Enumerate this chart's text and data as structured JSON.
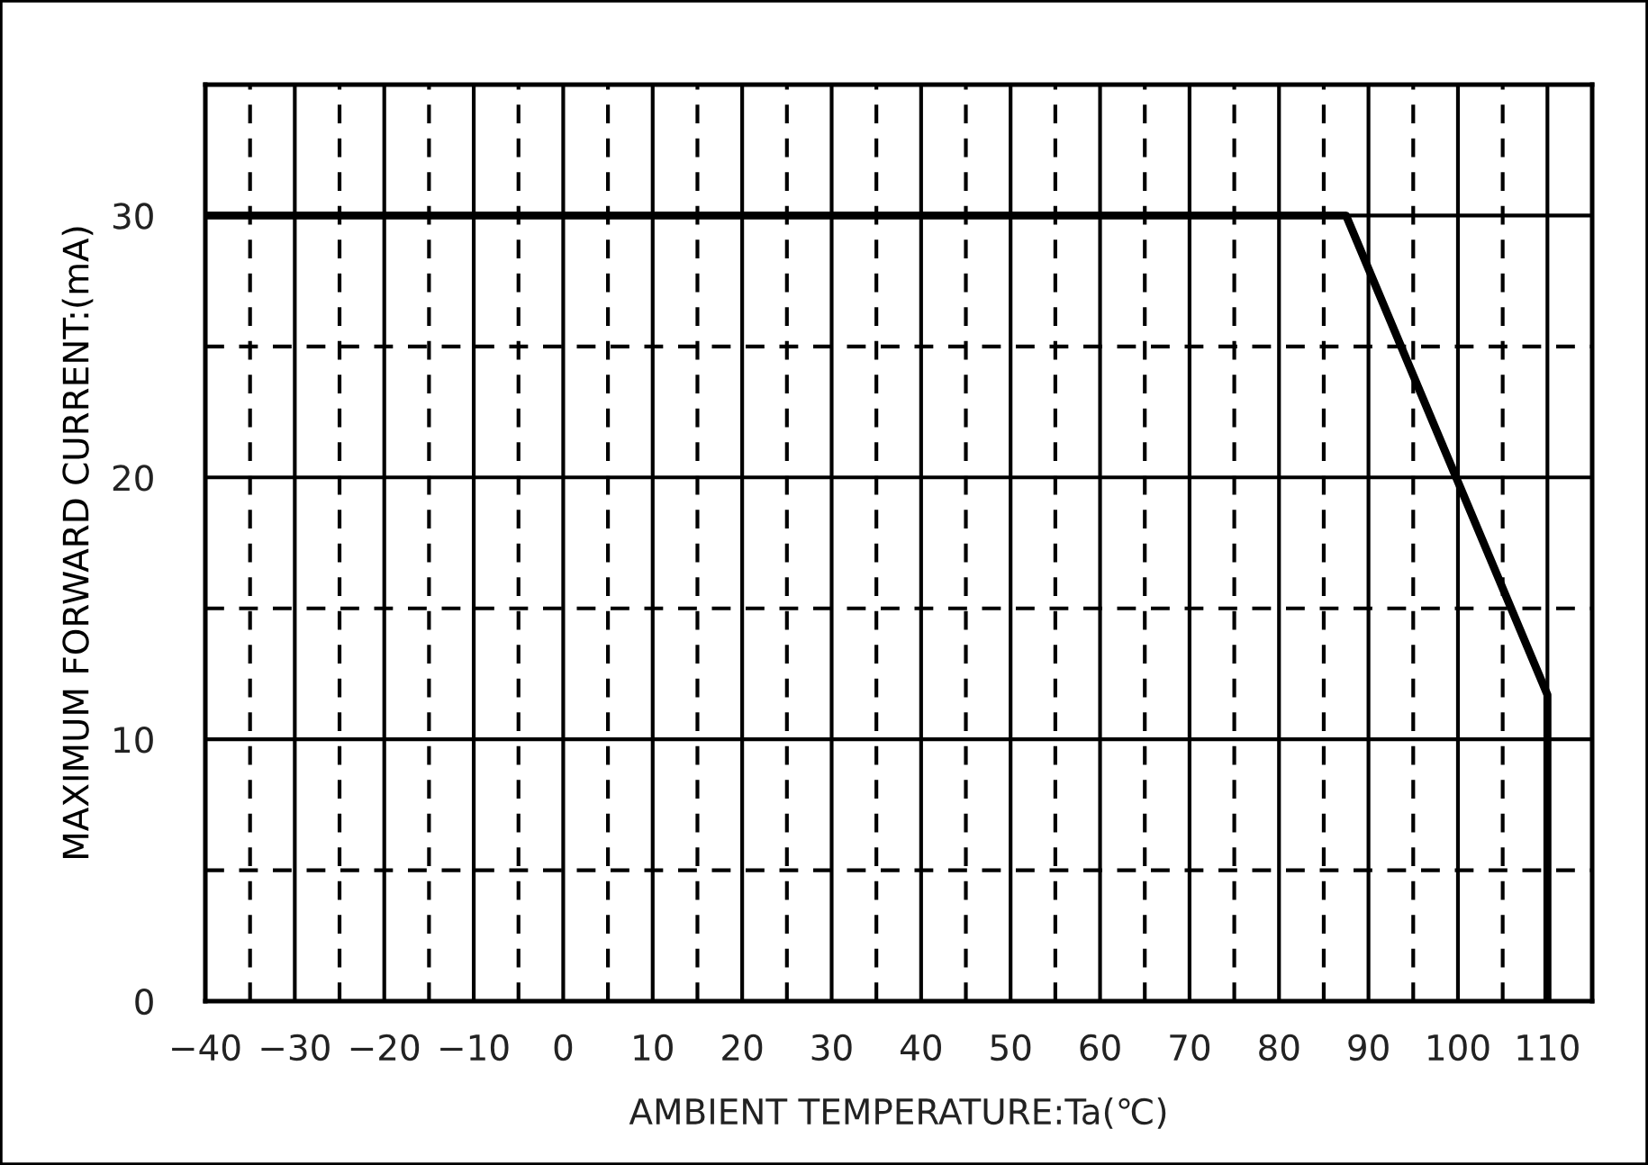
{
  "chart_data": {
    "type": "line",
    "xlabel": "AMBIENT TEMPERATURE:Ta(℃)",
    "ylabel": "MAXIMUM FORWARD CURRENT:(mA)",
    "x": [
      -40,
      87.5,
      110,
      110
    ],
    "series": [
      {
        "color": "#000000",
        "values": [
          30,
          30,
          11.7,
          0
        ]
      }
    ],
    "xlim": [
      -40,
      115
    ],
    "ylim": [
      0,
      35
    ],
    "xticks": [
      {
        "value": -40,
        "label": "−40"
      },
      {
        "value": -35,
        "label": null
      },
      {
        "value": -30,
        "label": "−30"
      },
      {
        "value": -25,
        "label": null
      },
      {
        "value": -20,
        "label": "−20"
      },
      {
        "value": -15,
        "label": null
      },
      {
        "value": -10,
        "label": "−10"
      },
      {
        "value": -5,
        "label": null
      },
      0,
      {
        "value": 5,
        "label": null
      },
      10,
      {
        "value": 15,
        "label": null
      },
      20,
      {
        "value": 25,
        "label": null
      },
      30,
      {
        "value": 35,
        "label": null
      },
      40,
      {
        "value": 45,
        "label": null
      },
      50,
      {
        "value": 55,
        "label": null
      },
      60,
      {
        "value": 65,
        "label": null
      },
      70,
      {
        "value": 75,
        "label": null
      },
      80,
      {
        "value": 85,
        "label": null
      },
      90,
      {
        "value": 95,
        "label": null
      },
      100,
      {
        "value": 105,
        "label": null
      },
      110
    ],
    "yticks": [
      0,
      {
        "value": 5,
        "label": null
      },
      10,
      {
        "value": 15,
        "label": null
      },
      20,
      {
        "value": 25,
        "label": null
      },
      30
    ],
    "grid": true,
    "line_style": "solid",
    "marker": "none"
  }
}
